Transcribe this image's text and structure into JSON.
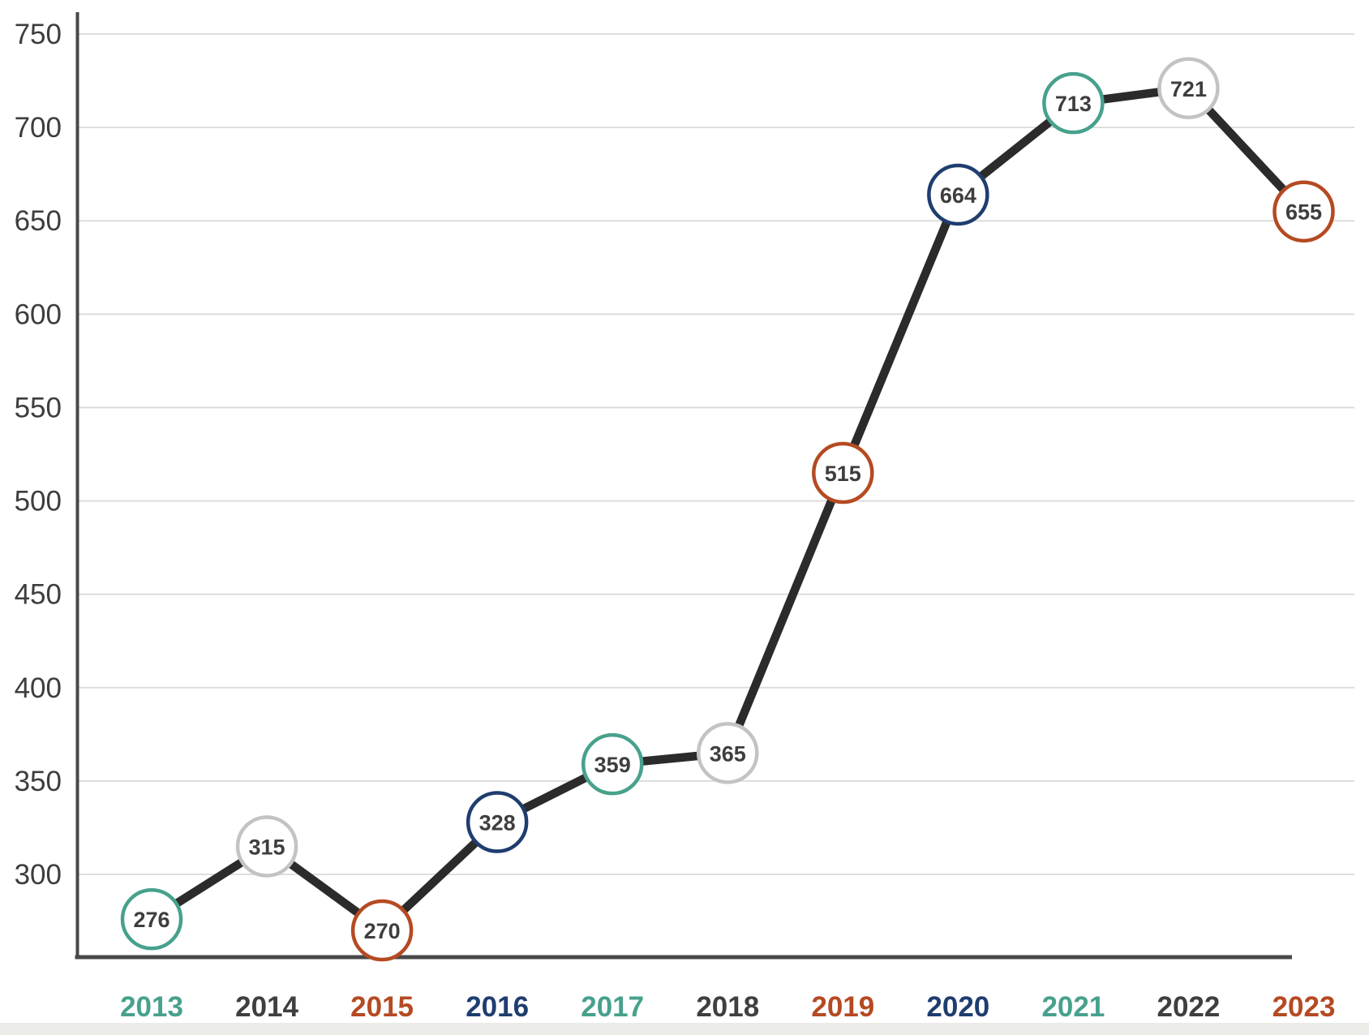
{
  "page": {
    "background": "#ffffff",
    "bottom_edge_color": "#e8e7e4"
  },
  "chart_data": {
    "type": "line",
    "title": "",
    "xlabel": "",
    "ylabel": "",
    "categories": [
      "2013",
      "2014",
      "2015",
      "2016",
      "2017",
      "2018",
      "2019",
      "2020",
      "2021",
      "2022",
      "2023"
    ],
    "values": [
      276,
      315,
      270,
      328,
      359,
      365,
      515,
      664,
      713,
      721,
      655
    ],
    "y_ticks": [
      750,
      700,
      650,
      600,
      550,
      500,
      450,
      400,
      350,
      300
    ],
    "ylim": [
      256,
      768
    ],
    "grid": true,
    "legend": false,
    "line_color": "#2b2b2b",
    "point_fill": "#ffffff",
    "point_stroke_colors": [
      "#47a18c",
      "#c2c3c5",
      "#b54a22",
      "#1f3d6f",
      "#47a18c",
      "#c2c3c5",
      "#b54a22",
      "#1f3d6f",
      "#47a18c",
      "#c2c3c5",
      "#b54a22"
    ],
    "x_label_colors": [
      "#47a18c",
      "#3f3f3f",
      "#b54a22",
      "#1f3d6f",
      "#47a18c",
      "#3f3f3f",
      "#b54a22",
      "#1f3d6f",
      "#47a18c",
      "#3f3f3f",
      "#b54a22"
    ],
    "value_label_color": "#3e3e3e",
    "tick_label_color": "#3d3d3d",
    "axis_color": "#484848",
    "grid_color": "#dadada"
  }
}
